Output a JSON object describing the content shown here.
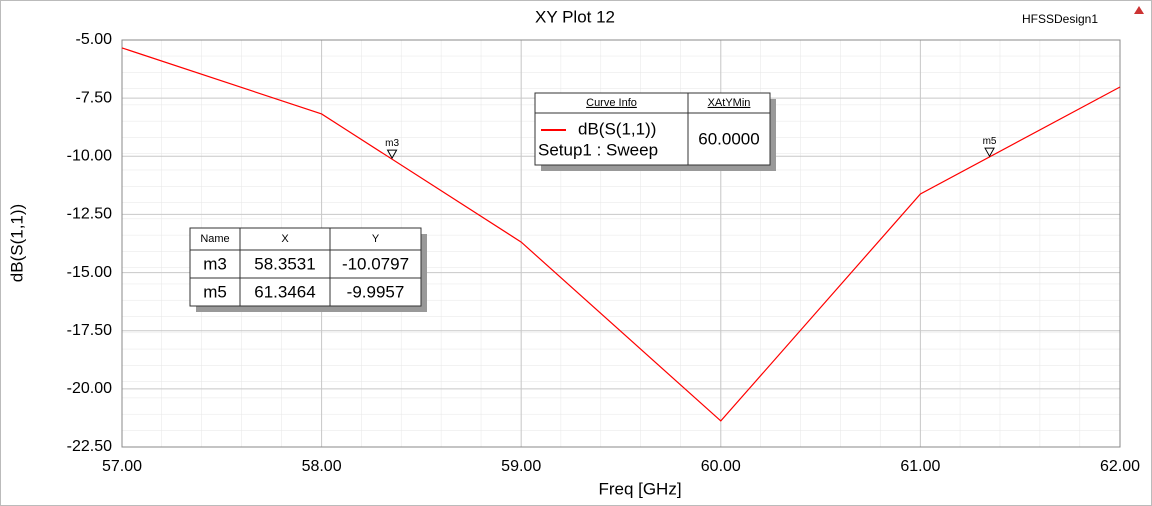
{
  "chart_data": {
    "type": "line",
    "title": "XY Plot 12",
    "design": "HFSSDesign1",
    "xlabel": "Freq [GHz]",
    "ylabel": "dB(S(1,1))",
    "x": [
      57,
      58,
      59,
      60,
      61,
      62
    ],
    "series": [
      {
        "name": "dB(S(1,1))",
        "color": "#ff0000",
        "values": [
          -5.34,
          -8.18,
          -13.69,
          -21.38,
          -11.62,
          -7.02
        ]
      }
    ],
    "xlim": [
      57,
      62
    ],
    "xticks": [
      {
        "value": 57,
        "label": "57.00"
      },
      {
        "value": 58,
        "label": "58.00"
      },
      {
        "value": 59,
        "label": "59.00"
      },
      {
        "value": 60,
        "label": "60.00"
      },
      {
        "value": 61,
        "label": "61.00"
      },
      {
        "value": 62,
        "label": "62.00"
      }
    ],
    "ylim": [
      -22.5,
      -5
    ],
    "yticks": [
      {
        "value": -22.5,
        "label": "-22.50"
      },
      {
        "value": -20,
        "label": "-20.00"
      },
      {
        "value": -17.5,
        "label": "-17.50"
      },
      {
        "value": -15,
        "label": "-15.00"
      },
      {
        "value": -12.5,
        "label": "-12.50"
      },
      {
        "value": -10,
        "label": "-10.00"
      },
      {
        "value": -7.5,
        "label": "-7.50"
      },
      {
        "value": -5,
        "label": "-5.00"
      }
    ],
    "grid": true,
    "curve_info": {
      "headers": [
        "Curve Info",
        "XAtYMin"
      ],
      "setup": "Setup1 : Sweep",
      "xatymin": {
        "value": 60,
        "label": "60.0000"
      }
    },
    "marker_table": {
      "headers": [
        "Name",
        "X",
        "Y"
      ]
    },
    "markers": [
      {
        "name": "m3",
        "x": 58.3531,
        "y": -10.0797
      },
      {
        "name": "m5",
        "x": 61.3464,
        "y": -9.9957
      }
    ]
  }
}
